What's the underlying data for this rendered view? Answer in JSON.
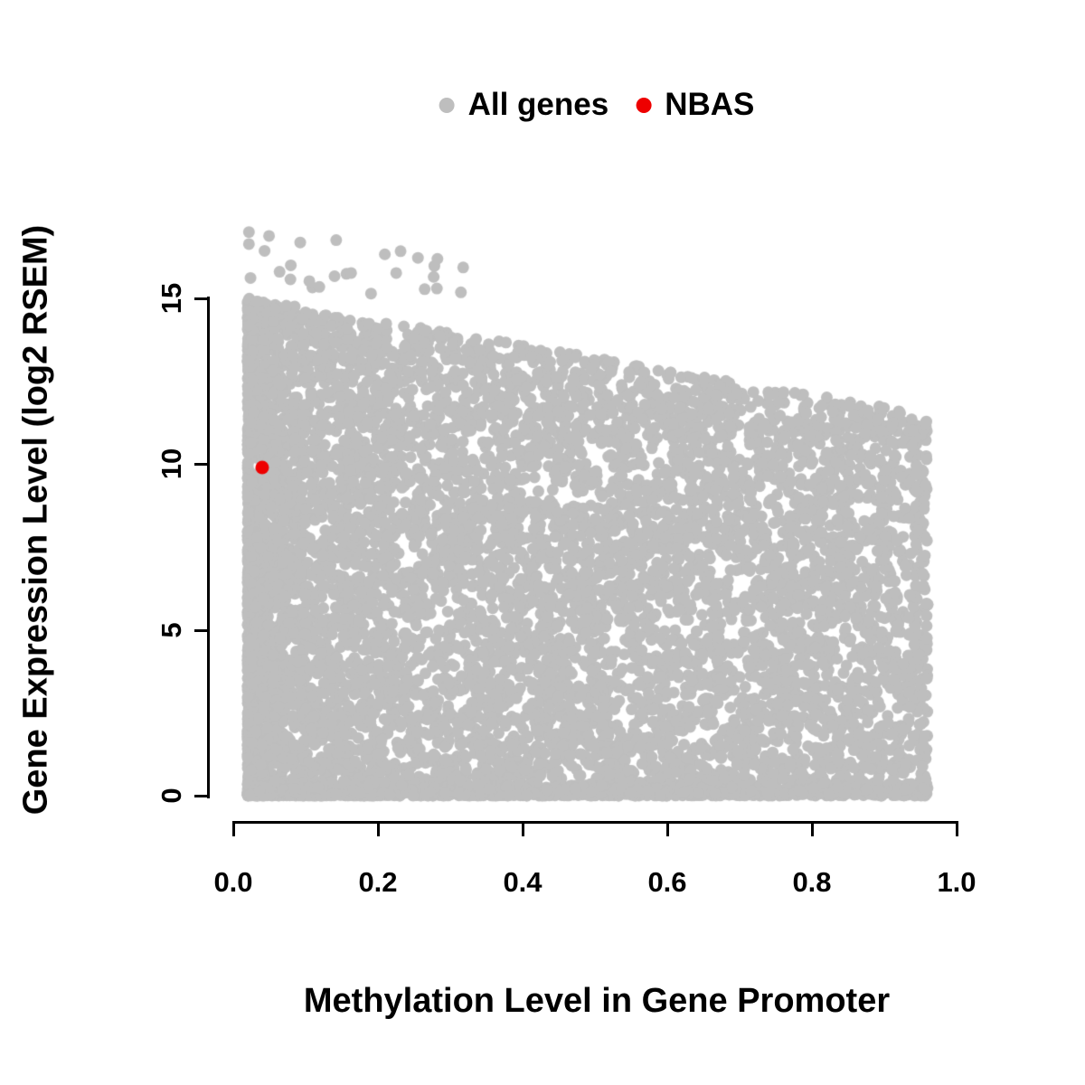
{
  "chart_data": {
    "type": "scatter",
    "title": "",
    "xlabel": "Methylation Level in Gene Promoter",
    "ylabel": "Gene Expression Level (log2 RSEM)",
    "xlim": [
      0.0,
      1.0
    ],
    "ylim": [
      0,
      17.2
    ],
    "grid": "off",
    "legend_position": "top-center",
    "x_ticks": [
      "0.0",
      "0.2",
      "0.4",
      "0.6",
      "0.8",
      "1.0"
    ],
    "x_tick_values": [
      0.0,
      0.2,
      0.4,
      0.6,
      0.8,
      1.0
    ],
    "y_ticks": [
      "0",
      "5",
      "10",
      "15"
    ],
    "y_tick_values": [
      0,
      5,
      10,
      15
    ],
    "legend": [
      {
        "label": "All genes",
        "color": "#BEBEBE"
      },
      {
        "label": "NBAS",
        "color": "#EE0000"
      }
    ],
    "series": [
      {
        "name": "All genes",
        "color": "#BEBEBE",
        "render": "generated-cloud",
        "n_points": 9000,
        "seed": 42,
        "x_range": [
          0.02,
          0.96
        ],
        "y_range": [
          0,
          17.1
        ],
        "envelope": {
          "y_max_at_x0": 15.0,
          "y_max_at_x1": 11.5
        },
        "description": "Dense gray cloud; point density highest at low methylation; maximum expression declines from ~15 at methylation ~0 to ~11.5 at methylation ~0.95; heavy band of points at expression ~0 across all methylation levels; a few outliers up to ~17 at low methylation"
      },
      {
        "name": "NBAS",
        "color": "#EE0000",
        "render": "points",
        "points": [
          [
            0.04,
            9.9
          ]
        ]
      }
    ],
    "background_color": "#FFFFFF",
    "axis_color": "#000000"
  }
}
